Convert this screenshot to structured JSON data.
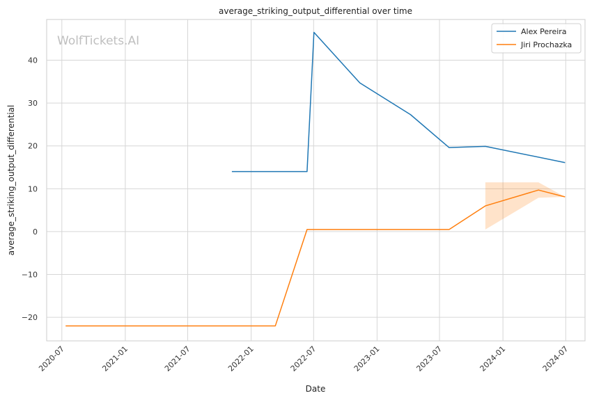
{
  "chart_data": {
    "type": "line",
    "title": "average_striking_output_differential over time",
    "xlabel": "Date",
    "ylabel": "average_striking_output_differential",
    "watermark": "WolfTickets.AI",
    "xlim": [
      "2020-05-18",
      "2024-08-26"
    ],
    "ylim": [
      -25.5,
      49.5
    ],
    "x_ticks": [
      "2020-07-01",
      "2021-01-01",
      "2021-07-01",
      "2022-01-01",
      "2022-07-01",
      "2023-01-01",
      "2023-07-01",
      "2024-01-01",
      "2024-07-01"
    ],
    "x_tick_labels": [
      "2020-07",
      "2021-01",
      "2021-07",
      "2022-01",
      "2022-07",
      "2023-01",
      "2023-07",
      "2024-01",
      "2024-07"
    ],
    "y_ticks": [
      -20,
      -10,
      0,
      10,
      20,
      30,
      40
    ],
    "y_tick_labels": [
      "−20",
      "−10",
      "0",
      "10",
      "20",
      "30",
      "40"
    ],
    "grid": true,
    "legend_position": "top-right",
    "series": [
      {
        "name": "Alex Pereira",
        "color": "#1f77b4",
        "points": [
          {
            "x": "2021-11-06",
            "y": 14.0
          },
          {
            "x": "2022-06-12",
            "y": 14.0
          },
          {
            "x": "2022-07-02",
            "y": 46.5
          },
          {
            "x": "2022-11-12",
            "y": 34.7
          },
          {
            "x": "2023-04-08",
            "y": 27.3
          },
          {
            "x": "2023-07-29",
            "y": 19.6
          },
          {
            "x": "2023-11-11",
            "y": 19.9
          },
          {
            "x": "2024-06-29",
            "y": 16.1
          }
        ]
      },
      {
        "name": "Jiri Prochazka",
        "color": "#ff7f0e",
        "points": [
          {
            "x": "2020-07-12",
            "y": -22.0
          },
          {
            "x": "2022-03-12",
            "y": -22.0
          },
          {
            "x": "2022-06-12",
            "y": 0.5
          },
          {
            "x": "2023-07-29",
            "y": 0.5
          },
          {
            "x": "2023-11-11",
            "y": 6.0
          },
          {
            "x": "2024-04-13",
            "y": 9.7
          },
          {
            "x": "2024-06-29",
            "y": 8.1
          }
        ],
        "band": [
          {
            "x": "2023-11-11",
            "lower": 0.5,
            "upper": 11.5
          },
          {
            "x": "2024-04-13",
            "lower": 7.9,
            "upper": 11.5
          },
          {
            "x": "2024-06-29",
            "lower": 8.1,
            "upper": 8.1
          }
        ]
      }
    ]
  }
}
